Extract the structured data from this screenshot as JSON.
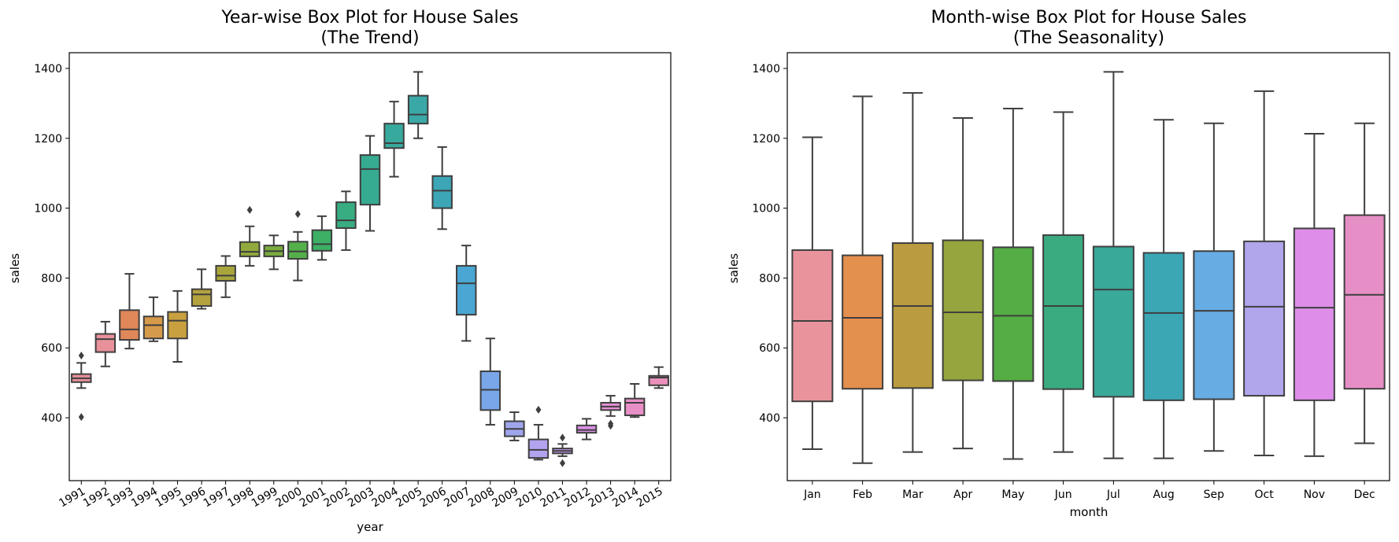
{
  "chart_data": [
    {
      "type": "box",
      "title": "Year-wise Box Plot for House Sales",
      "subtitle": "(The Trend)",
      "xlabel": "year",
      "ylabel": "sales",
      "ylim": [
        220,
        1445
      ],
      "yticks": [
        400,
        600,
        800,
        1000,
        1200,
        1400
      ],
      "grid": false,
      "categories": [
        "1991",
        "1992",
        "1993",
        "1994",
        "1995",
        "1996",
        "1997",
        "1998",
        "1999",
        "2000",
        "2001",
        "2002",
        "2003",
        "2004",
        "2005",
        "2006",
        "2007",
        "2008",
        "2009",
        "2010",
        "2011",
        "2012",
        "2013",
        "2014",
        "2015"
      ],
      "boxes": [
        {
          "min": 485,
          "q1": 502,
          "median": 513,
          "q3": 525,
          "max": 557,
          "outliers": [
            578,
            402
          ],
          "color": "#e8919b"
        },
        {
          "min": 547,
          "q1": 588,
          "median": 625,
          "q3": 640,
          "max": 675,
          "outliers": [],
          "color": "#e8919b"
        },
        {
          "min": 598,
          "q1": 623,
          "median": 653,
          "q3": 708,
          "max": 812,
          "outliers": [],
          "color": "#e0885a"
        },
        {
          "min": 619,
          "q1": 627,
          "median": 665,
          "q3": 690,
          "max": 745,
          "outliers": [],
          "color": "#d69a4b"
        },
        {
          "min": 560,
          "q1": 627,
          "median": 678,
          "q3": 703,
          "max": 763,
          "outliers": [],
          "color": "#c9a040"
        },
        {
          "min": 712,
          "q1": 720,
          "median": 753,
          "q3": 768,
          "max": 825,
          "outliers": [],
          "color": "#b4a23f"
        },
        {
          "min": 745,
          "q1": 792,
          "median": 807,
          "q3": 835,
          "max": 863,
          "outliers": [],
          "color": "#a9a53d"
        },
        {
          "min": 835,
          "q1": 862,
          "median": 875,
          "q3": 903,
          "max": 948,
          "outliers": [
            995
          ],
          "color": "#92aa3d"
        },
        {
          "min": 825,
          "q1": 862,
          "median": 877,
          "q3": 893,
          "max": 922,
          "outliers": [],
          "color": "#7bad3f"
        },
        {
          "min": 793,
          "q1": 855,
          "median": 876,
          "q3": 904,
          "max": 932,
          "outliers": [
            983
          ],
          "color": "#55b04b"
        },
        {
          "min": 852,
          "q1": 878,
          "median": 897,
          "q3": 937,
          "max": 977,
          "outliers": [],
          "color": "#3db066"
        },
        {
          "min": 880,
          "q1": 943,
          "median": 965,
          "q3": 1017,
          "max": 1048,
          "outliers": [],
          "color": "#38ad82"
        },
        {
          "min": 935,
          "q1": 1010,
          "median": 1112,
          "q3": 1152,
          "max": 1207,
          "outliers": [],
          "color": "#36ab92"
        },
        {
          "min": 1090,
          "q1": 1172,
          "median": 1186,
          "q3": 1242,
          "max": 1305,
          "outliers": [],
          "color": "#38a99d"
        },
        {
          "min": 1200,
          "q1": 1242,
          "median": 1268,
          "q3": 1322,
          "max": 1390,
          "outliers": [],
          "color": "#3aa8a6"
        },
        {
          "min": 940,
          "q1": 1000,
          "median": 1050,
          "q3": 1092,
          "max": 1175,
          "outliers": [],
          "color": "#3ca6b6"
        },
        {
          "min": 620,
          "q1": 695,
          "median": 785,
          "q3": 835,
          "max": 893,
          "outliers": [],
          "color": "#4aa6d2"
        },
        {
          "min": 380,
          "q1": 422,
          "median": 480,
          "q3": 533,
          "max": 627,
          "outliers": [],
          "color": "#78a6e8"
        },
        {
          "min": 335,
          "q1": 347,
          "median": 368,
          "q3": 390,
          "max": 416,
          "outliers": [],
          "color": "#9fa5ed"
        },
        {
          "min": 280,
          "q1": 285,
          "median": 308,
          "q3": 338,
          "max": 380,
          "outliers": [
            423
          ],
          "color": "#b3a3ee"
        },
        {
          "min": 290,
          "q1": 298,
          "median": 305,
          "q3": 312,
          "max": 325,
          "outliers": [
            343,
            270
          ],
          "color": "#c79af0"
        },
        {
          "min": 338,
          "q1": 357,
          "median": 365,
          "q3": 378,
          "max": 397,
          "outliers": [],
          "color": "#dd90e6"
        },
        {
          "min": 405,
          "q1": 422,
          "median": 432,
          "q3": 443,
          "max": 463,
          "outliers": [
            383,
            377
          ],
          "color": "#e58fd5"
        },
        {
          "min": 402,
          "q1": 407,
          "median": 443,
          "q3": 455,
          "max": 497,
          "outliers": [],
          "color": "#e98fc8"
        },
        {
          "min": 485,
          "q1": 493,
          "median": 515,
          "q3": 520,
          "max": 545,
          "outliers": [],
          "color": "#ea90ba"
        }
      ]
    },
    {
      "type": "box",
      "title": "Month-wise Box Plot for House Sales",
      "subtitle": "(The Seasonality)",
      "xlabel": "month",
      "ylabel": "sales",
      "ylim": [
        220,
        1445
      ],
      "yticks": [
        400,
        600,
        800,
        1000,
        1200,
        1400
      ],
      "grid": false,
      "categories": [
        "Jan",
        "Feb",
        "Mar",
        "Apr",
        "May",
        "Jun",
        "Jul",
        "Aug",
        "Sep",
        "Oct",
        "Nov",
        "Dec"
      ],
      "boxes": [
        {
          "min": 310,
          "q1": 447,
          "median": 677,
          "q3": 880,
          "max": 1203,
          "outliers": [],
          "color": "#e9949d"
        },
        {
          "min": 270,
          "q1": 483,
          "median": 686,
          "q3": 865,
          "max": 1320,
          "outliers": [],
          "color": "#e38f4e"
        },
        {
          "min": 302,
          "q1": 485,
          "median": 720,
          "q3": 900,
          "max": 1330,
          "outliers": [],
          "color": "#bb9b3f"
        },
        {
          "min": 312,
          "q1": 507,
          "median": 702,
          "q3": 908,
          "max": 1258,
          "outliers": [],
          "color": "#96a53d"
        },
        {
          "min": 282,
          "q1": 505,
          "median": 692,
          "q3": 888,
          "max": 1285,
          "outliers": [],
          "color": "#54ad45"
        },
        {
          "min": 302,
          "q1": 482,
          "median": 720,
          "q3": 923,
          "max": 1275,
          "outliers": [],
          "color": "#3aab80"
        },
        {
          "min": 284,
          "q1": 460,
          "median": 767,
          "q3": 890,
          "max": 1390,
          "outliers": [],
          "color": "#39a99a"
        },
        {
          "min": 284,
          "q1": 450,
          "median": 700,
          "q3": 872,
          "max": 1253,
          "outliers": [],
          "color": "#3ba7b5"
        },
        {
          "min": 305,
          "q1": 453,
          "median": 706,
          "q3": 877,
          "max": 1243,
          "outliers": [],
          "color": "#67ace3"
        },
        {
          "min": 292,
          "q1": 463,
          "median": 718,
          "q3": 905,
          "max": 1335,
          "outliers": [],
          "color": "#b1a5ec"
        },
        {
          "min": 290,
          "q1": 450,
          "median": 715,
          "q3": 942,
          "max": 1213,
          "outliers": [],
          "color": "#de8ee9"
        },
        {
          "min": 327,
          "q1": 483,
          "median": 752,
          "q3": 980,
          "max": 1243,
          "outliers": [],
          "color": "#e68ec6"
        }
      ]
    }
  ]
}
